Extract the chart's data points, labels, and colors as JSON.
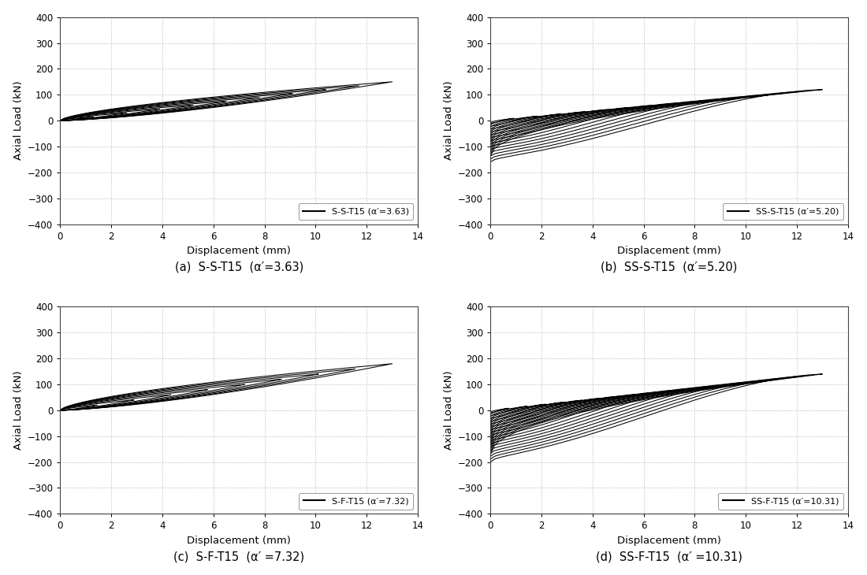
{
  "subplots": [
    {
      "label": "S-S-T15",
      "legend_text": "S-S-T15 (α′=3.63)",
      "caption": "(a)  S-S-T15  (α′=3.63)",
      "has_negative": false,
      "max_disp": 13.0,
      "max_load": 150,
      "min_load": 0,
      "n_cycles": 10
    },
    {
      "label": "SS-S-T15",
      "legend_text": "SS-S-T15 (α′=5.20)",
      "caption": "(b)  SS-S-T15  (α′=5.20)",
      "has_negative": true,
      "max_disp": 13.0,
      "max_load": 120,
      "min_load": -160,
      "n_cycles": 14
    },
    {
      "label": "S-F-T15",
      "legend_text": "S-F-T15 (α′=7.32)",
      "caption": "(c)  S-F-T15  (α′ =7.32)",
      "has_negative": false,
      "max_disp": 13.0,
      "max_load": 180,
      "min_load": 0,
      "n_cycles": 9
    },
    {
      "label": "SS-F-T15",
      "legend_text": "SS-F-T15 (α′=10.31)",
      "caption": "(d)  SS-F-T15  (α′ =10.31)",
      "has_negative": true,
      "max_disp": 13.0,
      "max_load": 140,
      "min_load": -200,
      "n_cycles": 18
    }
  ],
  "xlim": [
    0,
    14
  ],
  "ylim": [
    -400,
    400
  ],
  "xlabel": "Displacement (mm)",
  "ylabel": "Axial Load (kN)",
  "yticks": [
    -400,
    -300,
    -200,
    -100,
    0,
    100,
    200,
    300,
    400
  ],
  "xticks": [
    0,
    2,
    4,
    6,
    8,
    10,
    12,
    14
  ],
  "grid_color": "#c8c8c8",
  "line_color": "#000000",
  "line_width": 0.75,
  "background_color": "#ffffff",
  "caption_fontsize": 10.5,
  "axis_label_fontsize": 9.5,
  "tick_fontsize": 8.5,
  "legend_fontsize": 8
}
